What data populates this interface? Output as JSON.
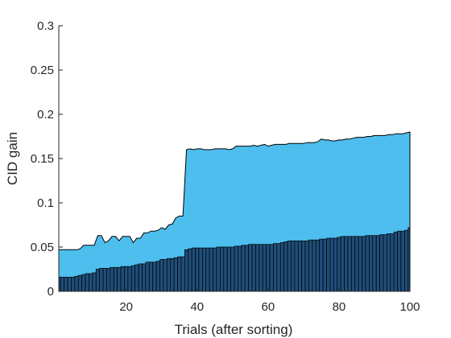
{
  "chart_data": {
    "type": "area",
    "xlabel": "Trials (after sorting)",
    "ylabel": "CID gain",
    "xlim": [
      1,
      100
    ],
    "ylim": [
      0,
      0.3
    ],
    "xticks": [
      20,
      40,
      60,
      80,
      100
    ],
    "xtick_labels": [
      "20",
      "40",
      "60",
      "80",
      "100"
    ],
    "yticks": [
      0,
      0.05,
      0.1,
      0.15,
      0.2,
      0.25,
      0.3
    ],
    "ytick_labels": [
      "0",
      "0.05",
      "0.1",
      "0.15",
      "0.2",
      "0.25",
      "0.3"
    ],
    "grid": false,
    "legend": "none",
    "colors": {
      "upper_fill": "#4DBEEE",
      "bar_fill": "#1F4E79",
      "edge": "#000000",
      "axis": "#262626"
    },
    "series": [
      {
        "kind": "area",
        "x": [
          1,
          2,
          3,
          4,
          5,
          6,
          7,
          8,
          9,
          10,
          11,
          12,
          13,
          14,
          15,
          16,
          17,
          18,
          19,
          20,
          21,
          22,
          23,
          24,
          25,
          26,
          27,
          28,
          29,
          30,
          31,
          32,
          33,
          34,
          35,
          36,
          37,
          38,
          39,
          40,
          41,
          42,
          43,
          44,
          45,
          46,
          47,
          48,
          49,
          50,
          51,
          52,
          53,
          54,
          55,
          56,
          57,
          58,
          59,
          60,
          61,
          62,
          63,
          64,
          65,
          66,
          67,
          68,
          69,
          70,
          71,
          72,
          73,
          74,
          75,
          76,
          77,
          78,
          79,
          80,
          81,
          82,
          83,
          84,
          85,
          86,
          87,
          88,
          89,
          90,
          91,
          92,
          93,
          94,
          95,
          96,
          97,
          98,
          99,
          100
        ],
        "values": [
          0.047,
          0.047,
          0.047,
          0.047,
          0.047,
          0.047,
          0.048,
          0.052,
          0.052,
          0.052,
          0.052,
          0.063,
          0.063,
          0.055,
          0.057,
          0.062,
          0.062,
          0.057,
          0.062,
          0.062,
          0.062,
          0.055,
          0.06,
          0.06,
          0.066,
          0.066,
          0.068,
          0.068,
          0.069,
          0.072,
          0.07,
          0.075,
          0.076,
          0.083,
          0.085,
          0.085,
          0.16,
          0.161,
          0.16,
          0.161,
          0.161,
          0.16,
          0.16,
          0.16,
          0.161,
          0.161,
          0.161,
          0.161,
          0.16,
          0.161,
          0.164,
          0.164,
          0.164,
          0.164,
          0.164,
          0.165,
          0.164,
          0.165,
          0.166,
          0.164,
          0.165,
          0.166,
          0.166,
          0.166,
          0.166,
          0.167,
          0.167,
          0.167,
          0.167,
          0.167,
          0.168,
          0.168,
          0.168,
          0.169,
          0.172,
          0.171,
          0.171,
          0.17,
          0.17,
          0.171,
          0.171,
          0.172,
          0.172,
          0.173,
          0.174,
          0.174,
          0.174,
          0.175,
          0.175,
          0.176,
          0.176,
          0.176,
          0.176,
          0.177,
          0.177,
          0.178,
          0.178,
          0.178,
          0.179,
          0.18
        ]
      },
      {
        "kind": "bar",
        "x": [
          1,
          2,
          3,
          4,
          5,
          6,
          7,
          8,
          9,
          10,
          11,
          12,
          13,
          14,
          15,
          16,
          17,
          18,
          19,
          20,
          21,
          22,
          23,
          24,
          25,
          26,
          27,
          28,
          29,
          30,
          31,
          32,
          33,
          34,
          35,
          36,
          37,
          38,
          39,
          40,
          41,
          42,
          43,
          44,
          45,
          46,
          47,
          48,
          49,
          50,
          51,
          52,
          53,
          54,
          55,
          56,
          57,
          58,
          59,
          60,
          61,
          62,
          63,
          64,
          65,
          66,
          67,
          68,
          69,
          70,
          71,
          72,
          73,
          74,
          75,
          76,
          77,
          78,
          79,
          80,
          81,
          82,
          83,
          84,
          85,
          86,
          87,
          88,
          89,
          90,
          91,
          92,
          93,
          94,
          95,
          96,
          97,
          98,
          99,
          100
        ],
        "values": [
          0.016,
          0.016,
          0.016,
          0.016,
          0.016,
          0.017,
          0.018,
          0.019,
          0.02,
          0.02,
          0.021,
          0.025,
          0.026,
          0.026,
          0.026,
          0.027,
          0.027,
          0.027,
          0.028,
          0.028,
          0.028,
          0.029,
          0.03,
          0.031,
          0.031,
          0.033,
          0.033,
          0.033,
          0.034,
          0.036,
          0.036,
          0.037,
          0.037,
          0.038,
          0.039,
          0.039,
          0.047,
          0.048,
          0.049,
          0.049,
          0.049,
          0.049,
          0.049,
          0.049,
          0.049,
          0.05,
          0.05,
          0.05,
          0.05,
          0.05,
          0.051,
          0.051,
          0.052,
          0.052,
          0.053,
          0.053,
          0.053,
          0.053,
          0.053,
          0.053,
          0.053,
          0.054,
          0.054,
          0.055,
          0.056,
          0.057,
          0.057,
          0.057,
          0.057,
          0.057,
          0.057,
          0.058,
          0.058,
          0.058,
          0.059,
          0.059,
          0.06,
          0.06,
          0.06,
          0.061,
          0.062,
          0.062,
          0.062,
          0.062,
          0.062,
          0.062,
          0.062,
          0.063,
          0.063,
          0.063,
          0.063,
          0.064,
          0.064,
          0.065,
          0.065,
          0.067,
          0.068,
          0.068,
          0.069,
          0.072
        ]
      }
    ]
  }
}
